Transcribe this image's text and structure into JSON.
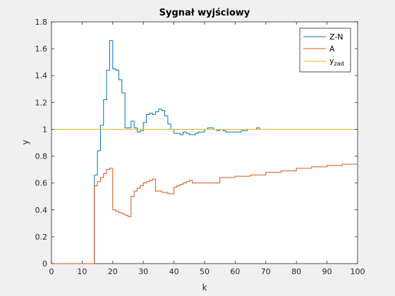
{
  "chart_data": {
    "type": "line",
    "step": true,
    "title": "Sygnał wyjściowy",
    "xlabel": "k",
    "ylabel": "y",
    "xlim": [
      0,
      100
    ],
    "ylim": [
      0,
      1.8
    ],
    "xticks": [
      0,
      10,
      20,
      30,
      40,
      50,
      60,
      70,
      80,
      90,
      100
    ],
    "xtick_labels": [
      "0",
      "10",
      "20",
      "30",
      "40",
      "50",
      "60",
      "70",
      "80",
      "90",
      "100"
    ],
    "yticks": [
      0,
      0.2,
      0.4,
      0.6,
      0.8,
      1.0,
      1.2,
      1.4,
      1.6,
      1.8
    ],
    "ytick_labels": [
      "0",
      "0.2",
      "0.4",
      "0.6",
      "0.8",
      "1",
      "1.2",
      "1.4",
      "1.6",
      "1.8"
    ],
    "grid": false,
    "legend_position": "top-right",
    "series": [
      {
        "name": "Z-N",
        "color": "#0072BD",
        "x": [
          0,
          14,
          15,
          16,
          17,
          18,
          19,
          20,
          21,
          22,
          23,
          24,
          25,
          26,
          27,
          28,
          29,
          30,
          31,
          32,
          33,
          34,
          35,
          36,
          37,
          38,
          39,
          40,
          41,
          42,
          43,
          44,
          45,
          46,
          47,
          48,
          49,
          50,
          51,
          52,
          53,
          54,
          55,
          56,
          57,
          58,
          59,
          60,
          61,
          62,
          63,
          64,
          65,
          66,
          67,
          68,
          69,
          70
        ],
        "y": [
          0,
          0.66,
          0.84,
          1.03,
          1.22,
          1.44,
          1.66,
          1.45,
          1.44,
          1.37,
          1.27,
          1.01,
          1.01,
          1.06,
          1.01,
          0.98,
          0.99,
          1.05,
          1.11,
          1.12,
          1.11,
          1.13,
          1.15,
          1.14,
          1.1,
          1.04,
          1.0,
          0.97,
          0.97,
          0.96,
          0.98,
          0.97,
          0.96,
          0.96,
          0.97,
          0.98,
          0.98,
          1.0,
          1.01,
          1.01,
          1.0,
          0.99,
          1.0,
          0.99,
          0.98,
          0.98,
          0.98,
          0.98,
          0.98,
          0.99,
          0.99,
          1.0,
          1.0,
          1.0,
          1.01,
          1.0,
          1.0,
          1.0
        ]
      },
      {
        "name": "A",
        "color": "#D95319",
        "x": [
          0,
          14,
          15,
          16,
          17,
          18,
          19,
          20,
          21,
          22,
          23,
          24,
          25,
          26,
          27,
          28,
          29,
          30,
          31,
          32,
          33,
          34,
          35,
          36,
          37,
          38,
          39,
          40,
          41,
          42,
          43,
          44,
          45,
          46,
          50,
          55,
          60,
          65,
          70,
          75,
          80,
          85,
          90,
          95,
          100
        ],
        "y": [
          0,
          0.58,
          0.61,
          0.64,
          0.67,
          0.7,
          0.71,
          0.4,
          0.39,
          0.38,
          0.37,
          0.36,
          0.35,
          0.5,
          0.54,
          0.56,
          0.58,
          0.6,
          0.61,
          0.62,
          0.63,
          0.54,
          0.54,
          0.53,
          0.53,
          0.52,
          0.52,
          0.57,
          0.58,
          0.59,
          0.6,
          0.61,
          0.62,
          0.6,
          0.6,
          0.64,
          0.65,
          0.66,
          0.68,
          0.69,
          0.71,
          0.72,
          0.73,
          0.74,
          0.75
        ]
      },
      {
        "name": "y",
        "name_subscript": "zad",
        "color": "#EDB120",
        "x": [
          0,
          100
        ],
        "y": [
          1,
          1
        ]
      }
    ]
  }
}
